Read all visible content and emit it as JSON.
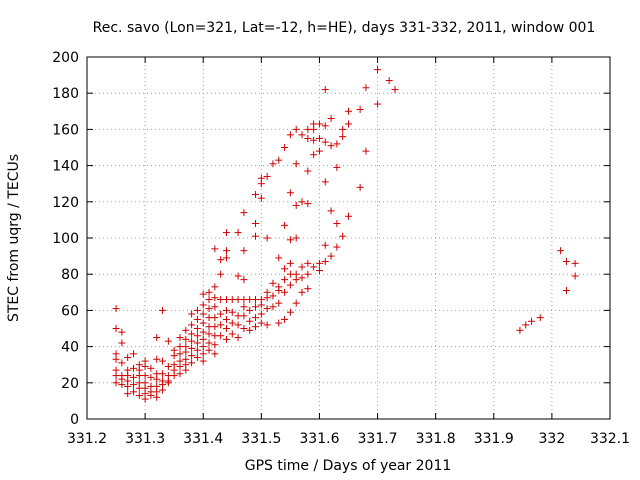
{
  "chart_data": {
    "type": "scatter",
    "title": "Rec. savo (Lon=321, Lat=-12, h=HE), days 331-332, 2011, window 001",
    "xlabel": "GPS time / Days of year 2011",
    "ylabel": "STEC from uqrg / TECUs",
    "xlim": [
      331.2,
      332.1
    ],
    "ylim": [
      0,
      200
    ],
    "xticks": [
      "331.2",
      "331.3",
      "331.4",
      "331.5",
      "331.6",
      "331.7",
      "331.8",
      "331.9",
      "332",
      "332.1"
    ],
    "yticks": [
      "0",
      "20",
      "40",
      "60",
      "80",
      "100",
      "120",
      "140",
      "160",
      "180",
      "200"
    ],
    "grid": true,
    "marker": "+",
    "marker_color": "#d00000",
    "points": [
      [
        331.25,
        61
      ],
      [
        331.25,
        50
      ],
      [
        331.25,
        36
      ],
      [
        331.25,
        33
      ],
      [
        331.25,
        27
      ],
      [
        331.25,
        24
      ],
      [
        331.25,
        20
      ],
      [
        331.26,
        48
      ],
      [
        331.26,
        42
      ],
      [
        331.26,
        31
      ],
      [
        331.26,
        24
      ],
      [
        331.26,
        22
      ],
      [
        331.26,
        19
      ],
      [
        331.27,
        34
      ],
      [
        331.27,
        27
      ],
      [
        331.27,
        24
      ],
      [
        331.27,
        21
      ],
      [
        331.27,
        18
      ],
      [
        331.27,
        14
      ],
      [
        331.28,
        36
      ],
      [
        331.28,
        28
      ],
      [
        331.28,
        23
      ],
      [
        331.28,
        19
      ],
      [
        331.28,
        15
      ],
      [
        331.29,
        30
      ],
      [
        331.29,
        27
      ],
      [
        331.29,
        24
      ],
      [
        331.29,
        20
      ],
      [
        331.29,
        17
      ],
      [
        331.29,
        13
      ],
      [
        331.3,
        32
      ],
      [
        331.3,
        29
      ],
      [
        331.3,
        24
      ],
      [
        331.3,
        20
      ],
      [
        331.3,
        17
      ],
      [
        331.3,
        14
      ],
      [
        331.3,
        11
      ],
      [
        331.31,
        28
      ],
      [
        331.31,
        23
      ],
      [
        331.31,
        18
      ],
      [
        331.31,
        15
      ],
      [
        331.31,
        13
      ],
      [
        331.32,
        45
      ],
      [
        331.32,
        33
      ],
      [
        331.32,
        25
      ],
      [
        331.32,
        22
      ],
      [
        331.32,
        18
      ],
      [
        331.32,
        15
      ],
      [
        331.32,
        12
      ],
      [
        331.33,
        60
      ],
      [
        331.33,
        32
      ],
      [
        331.33,
        25
      ],
      [
        331.33,
        21
      ],
      [
        331.33,
        19
      ],
      [
        331.33,
        16
      ],
      [
        331.34,
        43
      ],
      [
        331.34,
        29
      ],
      [
        331.34,
        24
      ],
      [
        331.34,
        21
      ],
      [
        331.34,
        20
      ],
      [
        331.35,
        38
      ],
      [
        331.35,
        35
      ],
      [
        331.35,
        30
      ],
      [
        331.35,
        27
      ],
      [
        331.35,
        24
      ],
      [
        331.36,
        45
      ],
      [
        331.36,
        40
      ],
      [
        331.36,
        36
      ],
      [
        331.36,
        32
      ],
      [
        331.36,
        29
      ],
      [
        331.36,
        25
      ],
      [
        331.37,
        49
      ],
      [
        331.37,
        44
      ],
      [
        331.37,
        40
      ],
      [
        331.37,
        37
      ],
      [
        331.37,
        33
      ],
      [
        331.37,
        30
      ],
      [
        331.37,
        27
      ],
      [
        331.38,
        58
      ],
      [
        331.38,
        52
      ],
      [
        331.38,
        47
      ],
      [
        331.38,
        43
      ],
      [
        331.38,
        39
      ],
      [
        331.38,
        35
      ],
      [
        331.38,
        31
      ],
      [
        331.39,
        60
      ],
      [
        331.39,
        55
      ],
      [
        331.39,
        50
      ],
      [
        331.39,
        46
      ],
      [
        331.39,
        42
      ],
      [
        331.39,
        38
      ],
      [
        331.39,
        34
      ],
      [
        331.4,
        69
      ],
      [
        331.4,
        63
      ],
      [
        331.4,
        58
      ],
      [
        331.4,
        53
      ],
      [
        331.4,
        48
      ],
      [
        331.4,
        44
      ],
      [
        331.4,
        40
      ],
      [
        331.4,
        36
      ],
      [
        331.4,
        32
      ],
      [
        331.41,
        70
      ],
      [
        331.41,
        66
      ],
      [
        331.41,
        61
      ],
      [
        331.41,
        56
      ],
      [
        331.41,
        51
      ],
      [
        331.41,
        47
      ],
      [
        331.41,
        42
      ],
      [
        331.41,
        38
      ],
      [
        331.42,
        94
      ],
      [
        331.42,
        73
      ],
      [
        331.42,
        67
      ],
      [
        331.42,
        62
      ],
      [
        331.42,
        56
      ],
      [
        331.42,
        51
      ],
      [
        331.42,
        46
      ],
      [
        331.42,
        41
      ],
      [
        331.42,
        36
      ],
      [
        331.43,
        88
      ],
      [
        331.43,
        80
      ],
      [
        331.43,
        66
      ],
      [
        331.43,
        58
      ],
      [
        331.43,
        52
      ],
      [
        331.43,
        46
      ],
      [
        331.44,
        103
      ],
      [
        331.44,
        93
      ],
      [
        331.44,
        89
      ],
      [
        331.44,
        66
      ],
      [
        331.44,
        60
      ],
      [
        331.44,
        55
      ],
      [
        331.44,
        50
      ],
      [
        331.44,
        44
      ],
      [
        331.45,
        66
      ],
      [
        331.45,
        59
      ],
      [
        331.45,
        53
      ],
      [
        331.45,
        47
      ],
      [
        331.46,
        103
      ],
      [
        331.46,
        79
      ],
      [
        331.46,
        66
      ],
      [
        331.46,
        57
      ],
      [
        331.46,
        52
      ],
      [
        331.46,
        45
      ],
      [
        331.47,
        114
      ],
      [
        331.47,
        93
      ],
      [
        331.47,
        77
      ],
      [
        331.47,
        66
      ],
      [
        331.47,
        62
      ],
      [
        331.47,
        57
      ],
      [
        331.47,
        50
      ],
      [
        331.48,
        66
      ],
      [
        331.48,
        60
      ],
      [
        331.48,
        54
      ],
      [
        331.48,
        49
      ],
      [
        331.49,
        124
      ],
      [
        331.49,
        108
      ],
      [
        331.49,
        101
      ],
      [
        331.49,
        66
      ],
      [
        331.49,
        62
      ],
      [
        331.49,
        56
      ],
      [
        331.49,
        51
      ],
      [
        331.5,
        133
      ],
      [
        331.5,
        130
      ],
      [
        331.5,
        122
      ],
      [
        331.5,
        66
      ],
      [
        331.5,
        63
      ],
      [
        331.5,
        58
      ],
      [
        331.5,
        53
      ],
      [
        331.51,
        134
      ],
      [
        331.51,
        100
      ],
      [
        331.51,
        70
      ],
      [
        331.51,
        67
      ],
      [
        331.51,
        61
      ],
      [
        331.51,
        52
      ],
      [
        331.52,
        141
      ],
      [
        331.52,
        75
      ],
      [
        331.52,
        68
      ],
      [
        331.52,
        62
      ],
      [
        331.53,
        143
      ],
      [
        331.53,
        89
      ],
      [
        331.53,
        73
      ],
      [
        331.53,
        71
      ],
      [
        331.53,
        64
      ],
      [
        331.53,
        53
      ],
      [
        331.54,
        150
      ],
      [
        331.54,
        107
      ],
      [
        331.54,
        83
      ],
      [
        331.54,
        77
      ],
      [
        331.54,
        70
      ],
      [
        331.54,
        55
      ],
      [
        331.55,
        157
      ],
      [
        331.55,
        125
      ],
      [
        331.55,
        99
      ],
      [
        331.55,
        86
      ],
      [
        331.55,
        80
      ],
      [
        331.55,
        74
      ],
      [
        331.55,
        59
      ],
      [
        331.56,
        160
      ],
      [
        331.56,
        141
      ],
      [
        331.56,
        118
      ],
      [
        331.56,
        100
      ],
      [
        331.56,
        80
      ],
      [
        331.56,
        77
      ],
      [
        331.56,
        64
      ],
      [
        331.57,
        157
      ],
      [
        331.57,
        120
      ],
      [
        331.57,
        84
      ],
      [
        331.57,
        78
      ],
      [
        331.57,
        70
      ],
      [
        331.58,
        160
      ],
      [
        331.58,
        155
      ],
      [
        331.58,
        137
      ],
      [
        331.58,
        119
      ],
      [
        331.58,
        86
      ],
      [
        331.58,
        80
      ],
      [
        331.58,
        72
      ],
      [
        331.59,
        163
      ],
      [
        331.59,
        160
      ],
      [
        331.59,
        154
      ],
      [
        331.59,
        146
      ],
      [
        331.59,
        84
      ],
      [
        331.6,
        163
      ],
      [
        331.6,
        155
      ],
      [
        331.6,
        148
      ],
      [
        331.6,
        86
      ],
      [
        331.6,
        82
      ],
      [
        331.61,
        182
      ],
      [
        331.61,
        162
      ],
      [
        331.61,
        153
      ],
      [
        331.61,
        131
      ],
      [
        331.61,
        96
      ],
      [
        331.61,
        87
      ],
      [
        331.62,
        166
      ],
      [
        331.62,
        151
      ],
      [
        331.62,
        115
      ],
      [
        331.62,
        90
      ],
      [
        331.63,
        152
      ],
      [
        331.63,
        139
      ],
      [
        331.63,
        108
      ],
      [
        331.63,
        95
      ],
      [
        331.64,
        160
      ],
      [
        331.64,
        156
      ],
      [
        331.64,
        101
      ],
      [
        331.65,
        170
      ],
      [
        331.65,
        163
      ],
      [
        331.65,
        112
      ],
      [
        331.67,
        171
      ],
      [
        331.67,
        128
      ],
      [
        331.68,
        183
      ],
      [
        331.68,
        148
      ],
      [
        331.7,
        193
      ],
      [
        331.7,
        174
      ],
      [
        331.72,
        187
      ],
      [
        331.73,
        182
      ],
      [
        331.945,
        49
      ],
      [
        331.955,
        52
      ],
      [
        331.965,
        54
      ],
      [
        331.98,
        56
      ],
      [
        332.015,
        93
      ],
      [
        332.025,
        87
      ],
      [
        332.025,
        71
      ],
      [
        332.04,
        86
      ],
      [
        332.04,
        79
      ]
    ]
  }
}
